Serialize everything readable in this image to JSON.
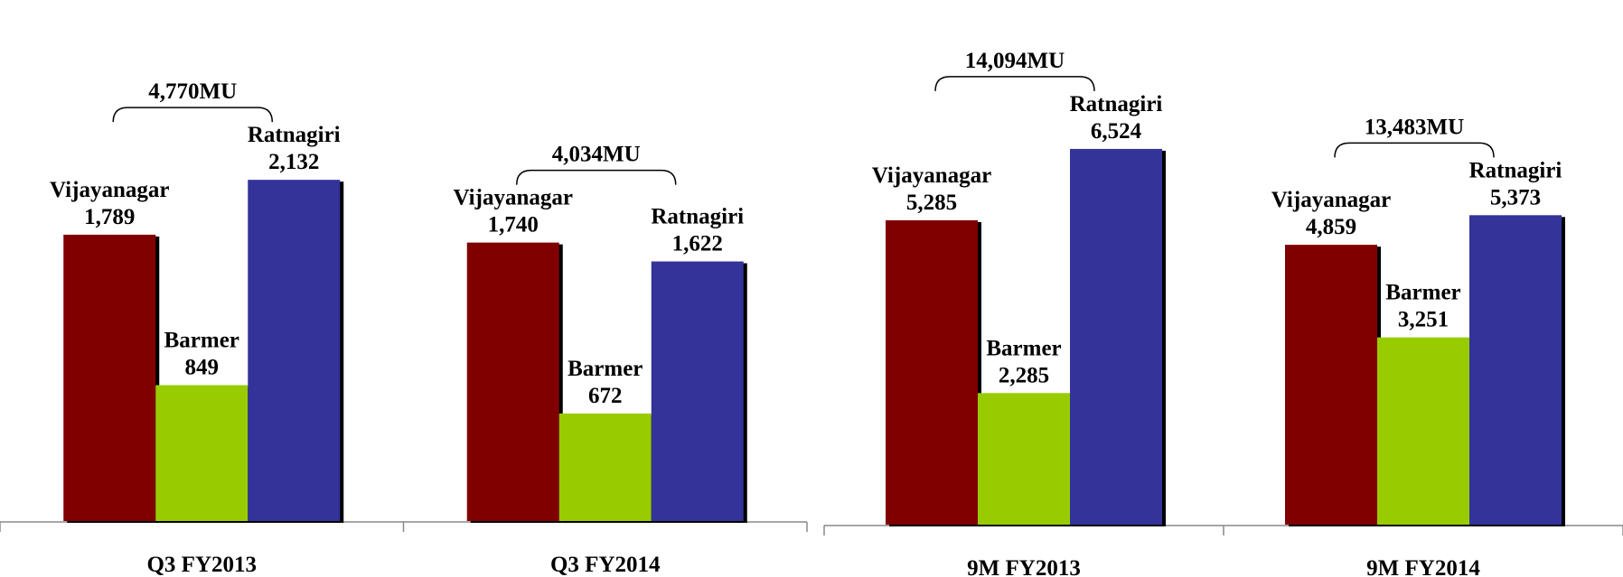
{
  "chart_data": [
    {
      "type": "bar",
      "categories": [
        "Q3 FY2013",
        "Q3 FY2014"
      ],
      "series": [
        {
          "name": "Vijayanagar",
          "color": "#800000",
          "values": [
            1789,
            1740
          ],
          "value_labels": [
            "1,789",
            "1,740"
          ]
        },
        {
          "name": "Barmer",
          "color": "#99cc00",
          "values": [
            849,
            672
          ]
        },
        {
          "name": "Ratnagiri",
          "color": "#333399",
          "values": [
            2132,
            1622
          ],
          "value_labels": [
            "2,132",
            "1,622"
          ]
        }
      ],
      "annotations": [
        "4,770MU",
        "4,034MU"
      ],
      "ylim": [
        0,
        3250
      ]
    },
    {
      "type": "bar",
      "categories": [
        "9M FY2013",
        "9M FY2014"
      ],
      "series": [
        {
          "name": "Vijayanagar",
          "color": "#800000",
          "values": [
            5285,
            4859
          ],
          "value_labels": [
            "5,285",
            "4,859"
          ]
        },
        {
          "name": "Barmer",
          "color": "#99cc00",
          "values": [
            2285,
            3251
          ],
          "value_labels": [
            "2,285",
            "3,251"
          ]
        },
        {
          "name": "Ratnagiri",
          "color": "#333399",
          "values": [
            6524,
            5373
          ],
          "value_labels": [
            "6,524",
            "5,373"
          ]
        }
      ],
      "annotations": [
        "14,094MU",
        "13,483MU"
      ],
      "ylim": [
        0,
        9000
      ]
    }
  ]
}
